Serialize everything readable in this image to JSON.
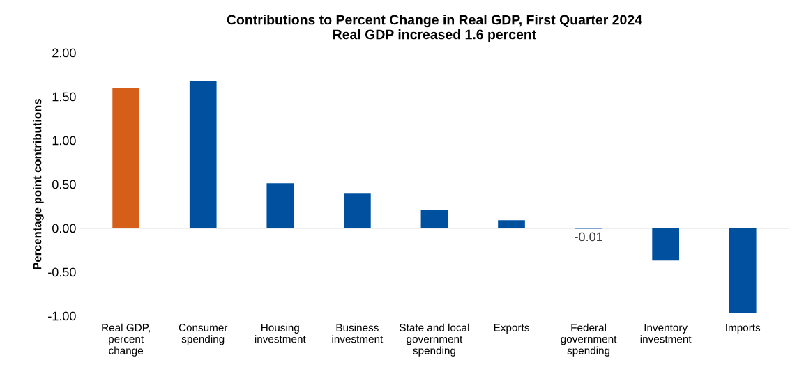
{
  "chart_data": {
    "type": "bar",
    "title": "Contributions to Percent Change in Real GDP, First Quarter 2024\nReal GDP increased 1.6 percent",
    "ylabel": "Percentage point contributions",
    "categories": [
      "Real GDP,\npercent\nchange",
      "Consumer\nspending",
      "Housing\ninvestment",
      "Business\ninvestment",
      "State and local\ngovernment\nspending",
      "Exports",
      "Federal\ngovernment\nspending",
      "Inventory\ninvestment",
      "Imports"
    ],
    "values": [
      1.6,
      1.68,
      0.51,
      0.4,
      0.21,
      0.09,
      -0.01,
      -0.37,
      -0.97
    ],
    "colors": [
      "#d55e18",
      "#0050a0",
      "#0050a0",
      "#0050a0",
      "#0050a0",
      "#0050a0",
      "#5b8fc9",
      "#0050a0",
      "#0050a0"
    ],
    "value_labels": [
      null,
      null,
      null,
      null,
      null,
      null,
      "-0.01",
      null,
      null
    ],
    "ylim": [
      -1.0,
      2.0
    ],
    "yticks": [
      {
        "value": -1.0,
        "label": "-1.00"
      },
      {
        "value": -0.5,
        "label": "-0.50"
      },
      {
        "value": 0.0,
        "label": "0.00"
      },
      {
        "value": 0.5,
        "label": "0.50"
      },
      {
        "value": 1.0,
        "label": "1.00"
      },
      {
        "value": 1.5,
        "label": "1.50"
      },
      {
        "value": 2.0,
        "label": "2.00"
      }
    ],
    "ref_lines": [
      {
        "axis": "y",
        "value": 0.0,
        "color": "#bfbfbf"
      }
    ],
    "grid": false,
    "legend": false
  }
}
